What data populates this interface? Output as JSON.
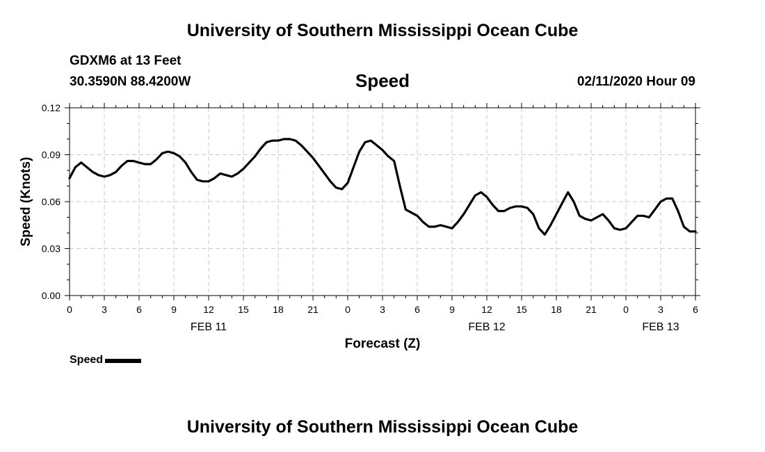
{
  "header": {
    "title": "University of Southern Mississippi Ocean Cube",
    "station": "GDXM6 at 13 Feet",
    "coordinates": "30.3590N 88.4200W",
    "datetime": "02/11/2020 Hour 09"
  },
  "footer": {
    "title": "University of Southern Mississippi Ocean Cube"
  },
  "legend": {
    "label": "Speed"
  },
  "chart_data": {
    "type": "line",
    "title": "Speed",
    "xlabel": "Forecast (Z)",
    "ylabel": "Speed (Knots)",
    "ylim": [
      0,
      0.12
    ],
    "xlim": [
      0,
      54
    ],
    "grid": true,
    "y_ticks": [
      0,
      0.03,
      0.06,
      0.09,
      0.12
    ],
    "y_tick_labels": [
      "0.00",
      "0.03",
      "0.06",
      "0.09",
      "0.12"
    ],
    "x_ticks": [
      0,
      3,
      6,
      9,
      12,
      15,
      18,
      21,
      24,
      27,
      30,
      33,
      36,
      39,
      42,
      45,
      48,
      51,
      54
    ],
    "x_tick_labels": [
      "0",
      "3",
      "6",
      "9",
      "12",
      "15",
      "18",
      "21",
      "0",
      "3",
      "6",
      "9",
      "12",
      "15",
      "18",
      "21",
      "0",
      "3",
      "6"
    ],
    "date_labels": [
      {
        "x": 12,
        "label": "FEB 11"
      },
      {
        "x": 36,
        "label": "FEB 12"
      },
      {
        "x": 51,
        "label": "FEB 13"
      }
    ],
    "series": [
      {
        "name": "Speed",
        "color": "#000000",
        "x": [
          0,
          0.5,
          1,
          1.5,
          2,
          2.5,
          3,
          3.5,
          4,
          4.5,
          5,
          5.5,
          6,
          6.5,
          7,
          7.5,
          8,
          8.5,
          9,
          9.5,
          10,
          10.5,
          11,
          11.5,
          12,
          12.5,
          13,
          13.5,
          14,
          14.5,
          15,
          15.5,
          16,
          16.5,
          17,
          17.5,
          18,
          18.5,
          19,
          19.5,
          20,
          20.5,
          21,
          21.5,
          22,
          22.5,
          23,
          23.5,
          24,
          24.5,
          25,
          25.5,
          26,
          26.5,
          27,
          27.5,
          28,
          28.5,
          29,
          29.5,
          30,
          30.5,
          31,
          31.5,
          32,
          32.5,
          33,
          33.5,
          34,
          34.5,
          35,
          35.5,
          36,
          36.5,
          37,
          37.5,
          38,
          38.5,
          39,
          39.5,
          40,
          40.5,
          41,
          41.5,
          42,
          42.5,
          43,
          43.5,
          44,
          44.5,
          45,
          45.5,
          46,
          46.5,
          47,
          47.5,
          48,
          48.5,
          49,
          49.5,
          50,
          50.5,
          51,
          51.5,
          52,
          52.5,
          53,
          53.5,
          54
        ],
        "values": [
          0.075,
          0.082,
          0.085,
          0.082,
          0.079,
          0.077,
          0.076,
          0.077,
          0.079,
          0.083,
          0.086,
          0.086,
          0.085,
          0.084,
          0.084,
          0.087,
          0.091,
          0.092,
          0.091,
          0.089,
          0.085,
          0.079,
          0.074,
          0.073,
          0.073,
          0.075,
          0.078,
          0.077,
          0.076,
          0.078,
          0.081,
          0.085,
          0.089,
          0.094,
          0.098,
          0.099,
          0.099,
          0.1,
          0.1,
          0.099,
          0.096,
          0.092,
          0.088,
          0.083,
          0.078,
          0.073,
          0.069,
          0.068,
          0.072,
          0.082,
          0.092,
          0.098,
          0.099,
          0.096,
          0.093,
          0.089,
          0.086,
          0.07,
          0.055,
          0.053,
          0.051,
          0.047,
          0.044,
          0.044,
          0.045,
          0.044,
          0.043,
          0.047,
          0.052,
          0.058,
          0.064,
          0.066,
          0.063,
          0.058,
          0.054,
          0.054,
          0.056,
          0.057,
          0.057,
          0.056,
          0.052,
          0.043,
          0.039,
          0.045,
          0.052,
          0.059,
          0.066,
          0.06,
          0.051,
          0.049,
          0.048,
          0.05,
          0.052,
          0.048,
          0.043,
          0.042,
          0.043,
          0.047,
          0.051,
          0.051,
          0.05,
          0.055,
          0.06,
          0.062,
          0.062,
          0.054,
          0.044,
          0.041,
          0.041
        ]
      }
    ]
  }
}
